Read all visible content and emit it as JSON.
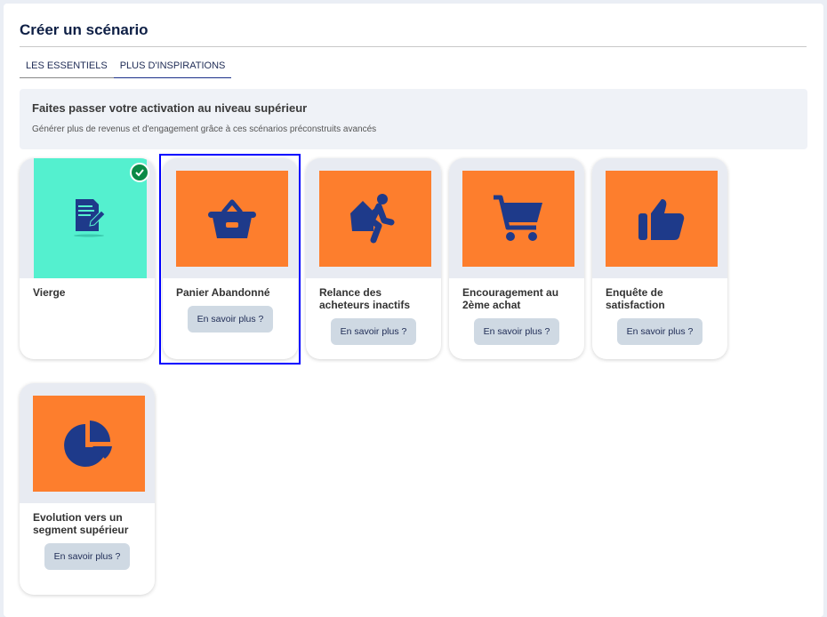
{
  "page": {
    "title": "Créer un scénario"
  },
  "tabs": [
    {
      "label": "LES ESSENTIELS",
      "active": false
    },
    {
      "label": "PLUS D'INSPIRATIONS",
      "active": true
    }
  ],
  "banner": {
    "heading": "Faites passer votre activation au niveau supérieur",
    "text": "Générer plus de revenus et d'engagement grâce à ces scénarios préconstruits avancés"
  },
  "colors": {
    "accent": "#1e3a8a",
    "orange": "#fd7e2d",
    "green": "#54f0cf",
    "check": "#0b8a47"
  },
  "cards": [
    {
      "name": "Vierge",
      "icon": "document-edit-icon",
      "selected_check": true
    },
    {
      "name": "Panier Abandonné",
      "icon": "basket-icon",
      "button": "En savoir plus ?",
      "highlighted": true
    },
    {
      "name": "Relance des acheteurs inactifs",
      "icon": "walking-person-icon",
      "button": "En savoir plus ?"
    },
    {
      "name": "Encouragement au 2ème achat",
      "icon": "cart-icon",
      "button": "En savoir plus ?"
    },
    {
      "name": "Enquête de satisfaction",
      "icon": "thumbs-up-icon",
      "button": "En savoir plus ?"
    },
    {
      "name": "Evolution vers un segment supérieur",
      "icon": "pie-chart-icon",
      "button": "En savoir plus ?"
    }
  ]
}
